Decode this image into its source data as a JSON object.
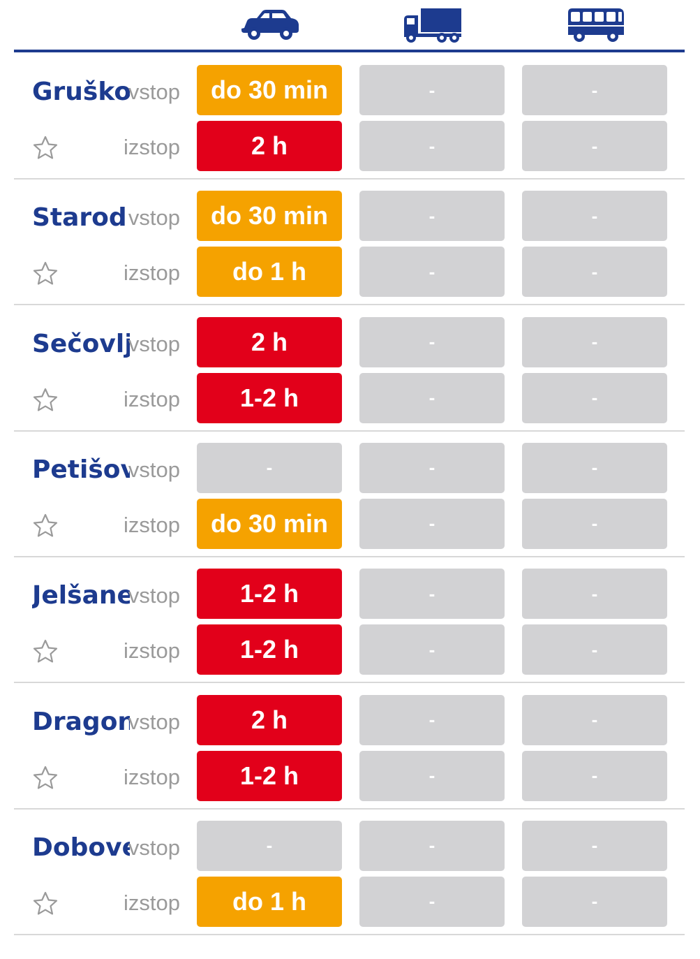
{
  "header": {
    "icons": [
      "car-icon",
      "truck-icon",
      "bus-icon"
    ]
  },
  "labels": {
    "entry": "vstop",
    "exit": "izstop"
  },
  "colors": {
    "brand_blue": "#1d3b8f",
    "orange": "#f5a200",
    "red": "#e2001a",
    "grey": "#d2d2d4"
  },
  "crossings": [
    {
      "name": "Gruško",
      "vstop": [
        {
          "text": "do 30 min",
          "status": "orange"
        },
        {
          "text": "-",
          "status": "grey"
        },
        {
          "text": "-",
          "status": "grey"
        }
      ],
      "izstop": [
        {
          "text": "2 h",
          "status": "red"
        },
        {
          "text": "-",
          "status": "grey"
        },
        {
          "text": "-",
          "status": "grey"
        }
      ]
    },
    {
      "name": "Starod",
      "vstop": [
        {
          "text": "do 30 min",
          "status": "orange"
        },
        {
          "text": "-",
          "status": "grey"
        },
        {
          "text": "-",
          "status": "grey"
        }
      ],
      "izstop": [
        {
          "text": "do 1 h",
          "status": "orange"
        },
        {
          "text": "-",
          "status": "grey"
        },
        {
          "text": "-",
          "status": "grey"
        }
      ]
    },
    {
      "name": "Sečovlje",
      "vstop": [
        {
          "text": "2 h",
          "status": "red"
        },
        {
          "text": "-",
          "status": "grey"
        },
        {
          "text": "-",
          "status": "grey"
        }
      ],
      "izstop": [
        {
          "text": "1-2 h",
          "status": "red"
        },
        {
          "text": "-",
          "status": "grey"
        },
        {
          "text": "-",
          "status": "grey"
        }
      ]
    },
    {
      "name": "Petišovci",
      "vstop": [
        {
          "text": "-",
          "status": "grey"
        },
        {
          "text": "-",
          "status": "grey"
        },
        {
          "text": "-",
          "status": "grey"
        }
      ],
      "izstop": [
        {
          "text": "do 30 min",
          "status": "orange"
        },
        {
          "text": "-",
          "status": "grey"
        },
        {
          "text": "-",
          "status": "grey"
        }
      ]
    },
    {
      "name": "Jelšane",
      "vstop": [
        {
          "text": "1-2 h",
          "status": "red"
        },
        {
          "text": "-",
          "status": "grey"
        },
        {
          "text": "-",
          "status": "grey"
        }
      ],
      "izstop": [
        {
          "text": "1-2 h",
          "status": "red"
        },
        {
          "text": "-",
          "status": "grey"
        },
        {
          "text": "-",
          "status": "grey"
        }
      ]
    },
    {
      "name": "Dragonja",
      "vstop": [
        {
          "text": "2 h",
          "status": "red"
        },
        {
          "text": "-",
          "status": "grey"
        },
        {
          "text": "-",
          "status": "grey"
        }
      ],
      "izstop": [
        {
          "text": "1-2 h",
          "status": "red"
        },
        {
          "text": "-",
          "status": "grey"
        },
        {
          "text": "-",
          "status": "grey"
        }
      ]
    },
    {
      "name": "Dobovec",
      "vstop": [
        {
          "text": "-",
          "status": "grey"
        },
        {
          "text": "-",
          "status": "grey"
        },
        {
          "text": "-",
          "status": "grey"
        }
      ],
      "izstop": [
        {
          "text": "do 1 h",
          "status": "orange"
        },
        {
          "text": "-",
          "status": "grey"
        },
        {
          "text": "-",
          "status": "grey"
        }
      ]
    }
  ]
}
